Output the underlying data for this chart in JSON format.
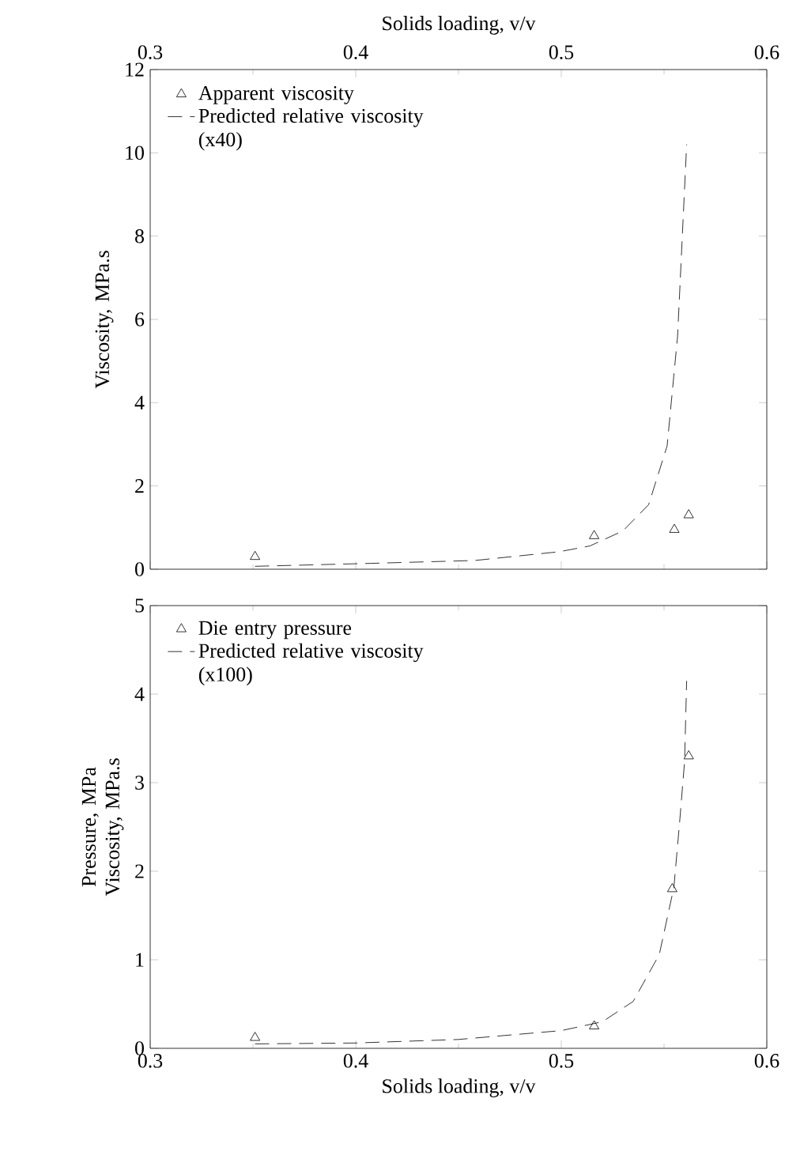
{
  "chart_data": [
    {
      "type": "scatter",
      "xlabel": "Solids loading, v/v",
      "ylabel": "Viscosity, MPa.s",
      "xlim": [
        0.3,
        0.6
      ],
      "xticks": [
        0.3,
        0.4,
        0.5,
        0.6
      ],
      "ylim": [
        0,
        12
      ],
      "yticks": [
        0,
        2,
        4,
        6,
        8,
        10,
        12
      ],
      "legend": "top left",
      "series": [
        {
          "name": "Apparent viscosity",
          "marker": "triangle",
          "color": "#000000",
          "x": [
            0.351,
            0.516,
            0.555,
            0.562
          ],
          "values": [
            0.3,
            0.8,
            0.95,
            1.3
          ]
        },
        {
          "name": "Predicted relative viscosity (x40)",
          "type": "line",
          "line_style": "dashed",
          "color": "#000000",
          "x": [
            0.351,
            0.407,
            0.458,
            0.499,
            0.514,
            0.53,
            0.5425,
            0.5515,
            0.5566,
            0.561
          ],
          "values": [
            0.07,
            0.14,
            0.21,
            0.42,
            0.56,
            0.92,
            1.55,
            2.96,
            5.6,
            10.2
          ]
        }
      ]
    },
    {
      "type": "scatter",
      "xlabel": "Solids loading, v/v",
      "ylabel": "Pressure, MPa Viscosity, MPa.s",
      "xlim": [
        0.3,
        0.6
      ],
      "xticks": [
        0.3,
        0.4,
        0.5,
        0.6
      ],
      "ylim": [
        0,
        5
      ],
      "yticks": [
        0,
        1,
        2,
        3,
        4,
        5
      ],
      "legend": "top left",
      "series": [
        {
          "name": "Die entry pressure",
          "marker": "triangle",
          "color": "#000000",
          "x": [
            0.351,
            0.516,
            0.554,
            0.562
          ],
          "values": [
            0.12,
            0.25,
            1.8,
            3.3
          ]
        },
        {
          "name": "Predicted relative viscosity (x100)",
          "type": "line",
          "line_style": "dashed",
          "color": "#000000",
          "x": [
            0.351,
            0.4,
            0.45,
            0.5,
            0.52,
            0.535,
            0.5477,
            0.5548,
            0.5575,
            0.56,
            0.561
          ],
          "values": [
            0.05,
            0.06,
            0.1,
            0.2,
            0.3,
            0.53,
            1.06,
            1.82,
            2.53,
            3.24,
            4.15
          ]
        }
      ]
    }
  ]
}
